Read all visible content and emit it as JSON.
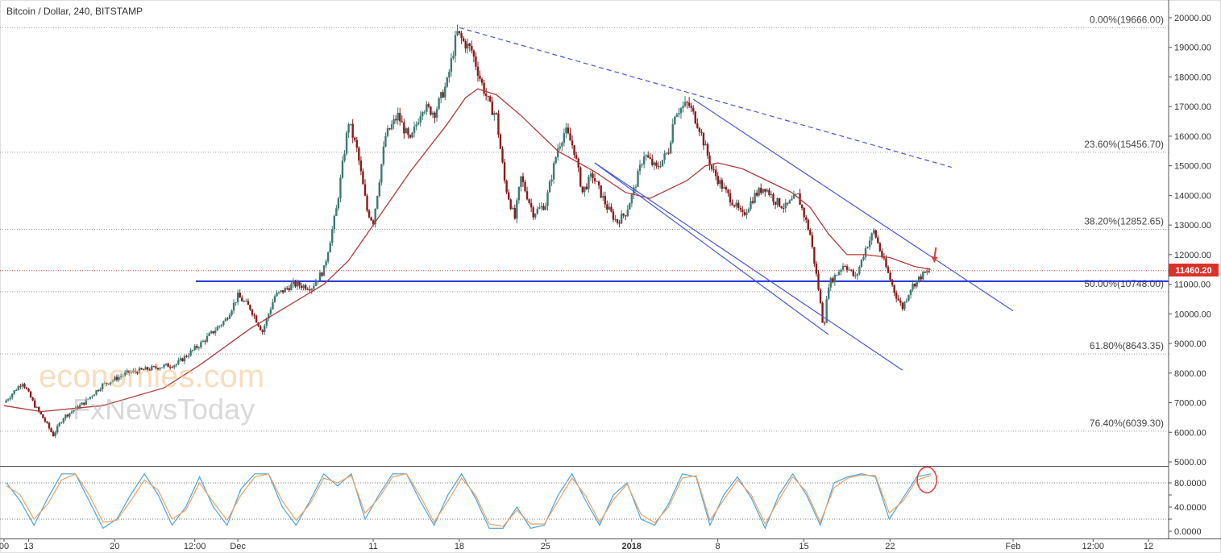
{
  "header": {
    "title": "Bitcoin / Dollar, 240, BITSTAMP"
  },
  "watermark": {
    "line1": "economies.com",
    "line2": "FxNewsToday"
  },
  "price_tag": "11460.20",
  "colors": {
    "up_candle": "#3d7a72",
    "down_candle": "#8b1a1a",
    "ma_line": "#b33a3a",
    "support_line": "#1d2fd6",
    "channel_line": "#4757d8",
    "price_line": "#d9534f",
    "stoch_k": "#4aa3df",
    "stoch_d": "#f0a060",
    "price_tag_bg": "#d9322b"
  },
  "chart_data": [
    {
      "type": "candlestick",
      "title": "Bitcoin / Dollar, 240, BITSTAMP",
      "ylim": [
        4700,
        20300
      ],
      "y_ticks": [
        5000,
        6000,
        7000,
        8000,
        9000,
        10000,
        11000,
        12000,
        13000,
        14000,
        15000,
        16000,
        17000,
        18000,
        19000,
        20000
      ],
      "y_tick_labels": [
        "5000.00",
        "6000.00",
        "7000.00",
        "8000.00",
        "9000.00",
        "10000.00",
        "11000.00",
        "12000.00",
        "13000.00",
        "14000.00",
        "15000.00",
        "16000.00",
        "17000.00",
        "18000.00",
        "19000.00",
        "20000.00"
      ],
      "x_tick_labels": [
        "00",
        "13",
        "20",
        "12:00",
        "Dec",
        "11",
        "18",
        "25",
        "2018",
        "8",
        "15",
        "22",
        "Feb",
        "12:00",
        "12"
      ],
      "x_tick_days": [
        0,
        2,
        9,
        15.5,
        19,
        30,
        37,
        44,
        51,
        58,
        65,
        72,
        82,
        88.5,
        93
      ],
      "x_range_days": [
        0,
        95
      ],
      "close_path": [
        [
          0,
          7000
        ],
        [
          1.5,
          7700
        ],
        [
          2.5,
          6900
        ],
        [
          3.3,
          6400
        ],
        [
          4,
          5900
        ],
        [
          4.8,
          6500
        ],
        [
          6.5,
          7000
        ],
        [
          8,
          7600
        ],
        [
          10,
          8000
        ],
        [
          12.5,
          8200
        ],
        [
          14,
          8300
        ],
        [
          16,
          9000
        ],
        [
          18,
          9800
        ],
        [
          19,
          10600
        ],
        [
          20,
          10200
        ],
        [
          21,
          9400
        ],
        [
          22,
          10600
        ],
        [
          23.5,
          11000
        ],
        [
          25,
          10900
        ],
        [
          26,
          11500
        ],
        [
          27,
          13500
        ],
        [
          28,
          16500
        ],
        [
          28.7,
          15500
        ],
        [
          29.5,
          13500
        ],
        [
          30,
          13100
        ],
        [
          31,
          16000
        ],
        [
          32,
          16700
        ],
        [
          33,
          15800
        ],
        [
          34,
          17000
        ],
        [
          35,
          16800
        ],
        [
          36,
          17800
        ],
        [
          36.8,
          19500
        ],
        [
          37.3,
          19200
        ],
        [
          38,
          18900
        ],
        [
          38.8,
          17800
        ],
        [
          39.5,
          17000
        ],
        [
          40,
          16700
        ],
        [
          40.7,
          14400
        ],
        [
          41.5,
          13200
        ],
        [
          42,
          14600
        ],
        [
          43,
          13400
        ],
        [
          44,
          13700
        ],
        [
          45,
          15600
        ],
        [
          45.6,
          16200
        ],
        [
          46.3,
          15600
        ],
        [
          47,
          14100
        ],
        [
          47.8,
          14700
        ],
        [
          49,
          13600
        ],
        [
          49.8,
          13100
        ],
        [
          50.5,
          13400
        ],
        [
          51.2,
          14200
        ],
        [
          52,
          15400
        ],
        [
          53,
          14900
        ],
        [
          54,
          15500
        ],
        [
          54.5,
          16800
        ],
        [
          55.6,
          17100
        ],
        [
          56.5,
          16300
        ],
        [
          57.5,
          14900
        ],
        [
          58.5,
          14200
        ],
        [
          59.2,
          13800
        ],
        [
          60,
          13300
        ],
        [
          61,
          14000
        ],
        [
          61.8,
          14300
        ],
        [
          62.7,
          13800
        ],
        [
          63.5,
          13600
        ],
        [
          64.5,
          14000
        ],
        [
          65.5,
          12700
        ],
        [
          66.2,
          10800
        ],
        [
          66.6,
          9500
        ],
        [
          67,
          11000
        ],
        [
          68.3,
          11700
        ],
        [
          69.2,
          11200
        ],
        [
          70,
          12200
        ],
        [
          70.7,
          12800
        ],
        [
          71.3,
          12000
        ],
        [
          71.9,
          11300
        ],
        [
          72.4,
          10700
        ],
        [
          73,
          10200
        ],
        [
          73.7,
          10900
        ],
        [
          74.6,
          11300
        ],
        [
          75.3,
          11460
        ]
      ],
      "ma_path": [
        [
          0,
          6900
        ],
        [
          3,
          6700
        ],
        [
          8,
          6900
        ],
        [
          13,
          7500
        ],
        [
          16,
          8300
        ],
        [
          20,
          9500
        ],
        [
          24,
          10500
        ],
        [
          26,
          11000
        ],
        [
          28,
          11800
        ],
        [
          30,
          13000
        ],
        [
          33,
          14800
        ],
        [
          36,
          16400
        ],
        [
          37.5,
          17300
        ],
        [
          38.5,
          17600
        ],
        [
          40,
          17400
        ],
        [
          42,
          16700
        ],
        [
          45,
          15500
        ],
        [
          48,
          14800
        ],
        [
          50.5,
          14100
        ],
        [
          52.5,
          13900
        ],
        [
          55.5,
          14500
        ],
        [
          57,
          15000
        ],
        [
          58,
          15100
        ],
        [
          60,
          14900
        ],
        [
          62,
          14500
        ],
        [
          64,
          14100
        ],
        [
          65.5,
          13600
        ],
        [
          67,
          12700
        ],
        [
          68.5,
          12000
        ],
        [
          70,
          12000
        ],
        [
          72,
          11900
        ],
        [
          74,
          11600
        ],
        [
          75.3,
          11500
        ]
      ],
      "fib_levels": [
        {
          "label": "0.00%(19666.00)",
          "value": 19666.0
        },
        {
          "label": "23.60%(15456.70)",
          "value": 15456.7
        },
        {
          "label": "38.20%(12852.65)",
          "value": 12852.65
        },
        {
          "label": "50.00%(10748.00)",
          "value": 10748.0
        },
        {
          "label": "61.80%(8643.35)",
          "value": 8643.35
        },
        {
          "label": "76.40%(6039.30)",
          "value": 6039.3
        }
      ],
      "support_level": 11100,
      "current_price": 11460.2,
      "trendlines": [
        {
          "style": "dashed",
          "from": [
            37.0,
            19666
          ],
          "to": [
            77.0,
            14950
          ]
        },
        {
          "style": "solid",
          "from": [
            56.0,
            17250
          ],
          "to": [
            82.0,
            10100
          ]
        },
        {
          "style": "solid",
          "from": [
            48.0,
            15100
          ],
          "to": [
            73.0,
            8100
          ]
        },
        {
          "style": "solid",
          "from": [
            48.0,
            15100
          ],
          "to": [
            67.0,
            9300
          ]
        }
      ],
      "annotations": [
        {
          "type": "arrow",
          "at": [
            75.6,
            11700
          ]
        }
      ]
    },
    {
      "type": "line",
      "title": "Stochastic",
      "ylim": [
        -8,
        104
      ],
      "y_ticks": [
        0,
        20,
        40,
        60,
        80
      ],
      "y_tick_labels": [
        "0.0000",
        "",
        "40.0000",
        "",
        "80.0000"
      ],
      "levels": [
        80,
        20
      ],
      "series": [
        {
          "color": "stoch_k",
          "values": [
            80,
            50,
            10,
            55,
            95,
            95,
            50,
            5,
            20,
            60,
            95,
            60,
            10,
            40,
            90,
            40,
            10,
            70,
            95,
            95,
            40,
            10,
            50,
            95,
            75,
            95,
            20,
            60,
            95,
            95,
            50,
            10,
            60,
            95,
            55,
            5,
            5,
            40,
            5,
            10,
            60,
            95,
            50,
            10,
            60,
            80,
            20,
            10,
            45,
            95,
            90,
            10,
            60,
            90,
            55,
            5,
            60,
            95,
            60,
            10,
            80,
            90,
            95,
            90,
            20,
            55,
            90,
            95
          ]
        },
        {
          "color": "stoch_d",
          "values": [
            75,
            60,
            20,
            45,
            85,
            95,
            60,
            15,
            18,
            50,
            85,
            68,
            20,
            35,
            80,
            48,
            18,
            60,
            90,
            95,
            50,
            18,
            45,
            88,
            80,
            92,
            30,
            55,
            90,
            95,
            58,
            15,
            50,
            88,
            60,
            12,
            8,
            35,
            12,
            12,
            50,
            88,
            58,
            15,
            52,
            78,
            28,
            14,
            40,
            88,
            92,
            18,
            52,
            85,
            60,
            12,
            52,
            90,
            65,
            15,
            72,
            88,
            93,
            92,
            30,
            50,
            85,
            92
          ]
        }
      ],
      "annotations": [
        {
          "type": "circle",
          "at": [
            75.0,
            85
          ]
        }
      ]
    }
  ]
}
